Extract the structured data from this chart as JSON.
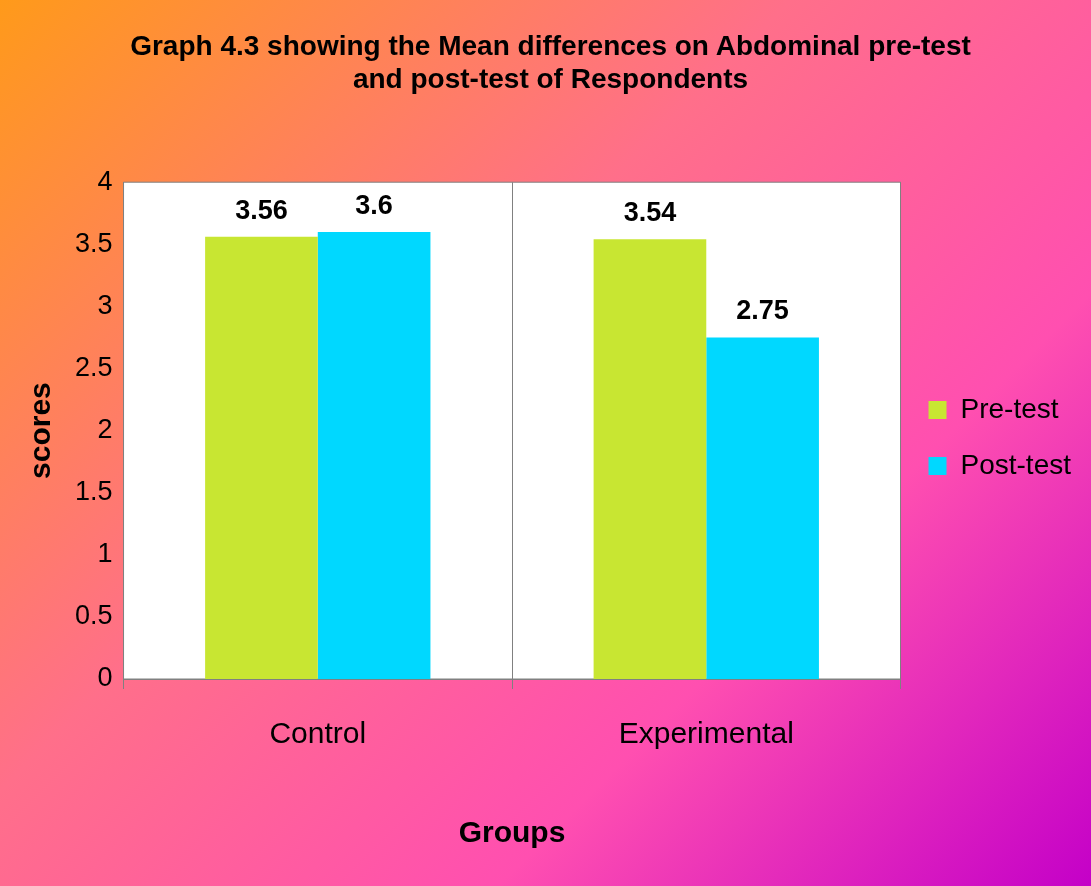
{
  "chart_data": {
    "type": "bar",
    "title": "Graph 4.3 showing the Mean differences on Abdominal pre-test and post-test of Respondents",
    "xlabel": "Groups",
    "ylabel": "scores",
    "categories": [
      "Control",
      "Experimental"
    ],
    "series": [
      {
        "name": "Pre-test",
        "color": "#c8e632",
        "values": [
          3.56,
          3.54
        ]
      },
      {
        "name": "Post-test",
        "color": "#00d8ff",
        "values": [
          3.6,
          2.75
        ]
      }
    ],
    "ylim": [
      0,
      4
    ],
    "yticks": [
      0,
      0.5,
      1,
      1.5,
      2,
      2.5,
      3,
      3.5,
      4
    ],
    "grid": "x",
    "legend": "right",
    "data_labels": true
  }
}
